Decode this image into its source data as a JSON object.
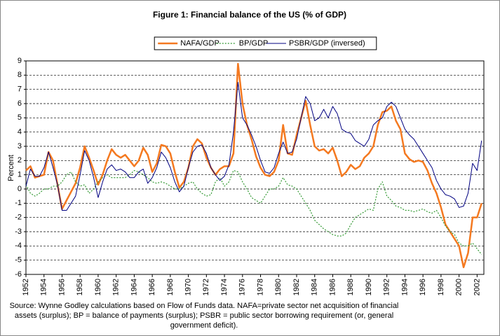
{
  "chart_data": {
    "type": "line",
    "title": "Figure 1: Financial balance of the US (% of GDP)",
    "ylabel": "Percent",
    "source": [
      "Source: Wynne Godley calculations based on Flow of Funds data. NAFA=private sector net acquisition of financial",
      "assets (surplus); BP = balance of payments (surplus); PSBR = public sector borrowing requirement (or, general",
      "government deficit)."
    ],
    "x": [
      1952,
      1952.5,
      1953,
      1953.5,
      1954,
      1954.5,
      1955,
      1955.5,
      1956,
      1956.5,
      1957,
      1957.5,
      1958,
      1958.5,
      1959,
      1959.5,
      1960,
      1960.5,
      1961,
      1961.5,
      1962,
      1962.5,
      1963,
      1963.5,
      1964,
      1964.5,
      1965,
      1965.5,
      1966,
      1966.5,
      1967,
      1967.5,
      1968,
      1968.5,
      1969,
      1969.5,
      1970,
      1970.5,
      1971,
      1971.5,
      1972,
      1972.5,
      1973,
      1973.5,
      1974,
      1974.5,
      1975,
      1975.5,
      1976,
      1976.5,
      1977,
      1977.5,
      1978,
      1978.5,
      1979,
      1979.5,
      1980,
      1980.5,
      1981,
      1981.5,
      1982,
      1982.5,
      1983,
      1983.5,
      1984,
      1984.5,
      1985,
      1985.5,
      1986,
      1986.5,
      1987,
      1987.5,
      1988,
      1988.5,
      1989,
      1989.5,
      1990,
      1990.5,
      1991,
      1991.5,
      1992,
      1992.5,
      1993,
      1993.5,
      1994,
      1994.5,
      1995,
      1995.5,
      1996,
      1996.5,
      1997,
      1997.5,
      1998,
      1998.5,
      1999,
      1999.5,
      2000,
      2000.5,
      2001,
      2001.5,
      2002,
      2002.5
    ],
    "series": [
      {
        "name": "NAFA/GDP",
        "color": "#f47920",
        "line_style": "solid",
        "width": 2.5,
        "values": [
          1.3,
          1.6,
          0.8,
          0.9,
          1.0,
          2.6,
          2.0,
          0.3,
          -1.4,
          -0.8,
          -0.2,
          0.4,
          1.5,
          3.0,
          2.2,
          1.3,
          0.3,
          1.0,
          2.0,
          2.8,
          2.4,
          2.2,
          2.4,
          2.0,
          1.6,
          2.0,
          2.9,
          2.4,
          1.2,
          1.8,
          3.1,
          3.0,
          2.5,
          1.2,
          0.1,
          0.5,
          1.5,
          3.0,
          3.5,
          3.2,
          2.2,
          1.5,
          1.0,
          1.4,
          1.6,
          1.6,
          2.5,
          8.8,
          6.0,
          4.5,
          3.5,
          2.3,
          1.5,
          1.0,
          0.9,
          1.2,
          2.0,
          4.5,
          2.5,
          2.4,
          3.8,
          5.0,
          6.2,
          4.5,
          3.0,
          2.7,
          2.8,
          2.5,
          2.9,
          2.0,
          0.9,
          1.2,
          1.7,
          1.4,
          1.6,
          2.2,
          2.5,
          3.0,
          4.5,
          5.4,
          5.5,
          5.8,
          4.8,
          4.2,
          2.5,
          2.1,
          1.9,
          2.0,
          1.9,
          1.3,
          0.4,
          -0.3,
          -1.3,
          -2.5,
          -3.0,
          -3.5,
          -4.0,
          -5.5,
          -4.5,
          -2.0,
          -2.0,
          -1.0
        ]
      },
      {
        "name": "BP/GDP",
        "color": "#339933",
        "line_style": "dotted",
        "width": 1.2,
        "values": [
          0.3,
          -0.3,
          -0.5,
          -0.3,
          0.0,
          0.0,
          0.2,
          0.2,
          0.5,
          1.0,
          1.2,
          0.5,
          0.2,
          0.3,
          -0.3,
          0.0,
          0.5,
          0.8,
          1.0,
          0.8,
          0.8,
          0.8,
          0.8,
          1.0,
          1.3,
          1.2,
          1.0,
          0.8,
          0.5,
          0.4,
          0.5,
          0.4,
          0.2,
          0.0,
          0.0,
          0.2,
          0.4,
          0.5,
          0.0,
          -0.3,
          -0.5,
          -0.4,
          0.5,
          0.8,
          0.2,
          0.5,
          1.3,
          1.2,
          0.5,
          0.0,
          -0.6,
          -0.8,
          -1.0,
          -0.5,
          0.0,
          0.0,
          0.2,
          0.8,
          0.3,
          0.2,
          0.0,
          -0.5,
          -1.0,
          -1.5,
          -2.2,
          -2.5,
          -2.8,
          -3.0,
          -3.2,
          -3.3,
          -3.3,
          -3.1,
          -2.5,
          -2.0,
          -1.8,
          -1.6,
          -1.4,
          -1.5,
          0.0,
          0.5,
          -0.5,
          -0.8,
          -1.2,
          -1.3,
          -1.5,
          -1.5,
          -1.6,
          -1.5,
          -1.4,
          -1.6,
          -1.7,
          -1.5,
          -2.0,
          -2.6,
          -3.0,
          -3.2,
          -3.8,
          -4.0,
          -4.0,
          -3.8,
          -4.2,
          -4.6
        ]
      },
      {
        "name": "PSBR/GDP (inversed)",
        "color": "#000080",
        "line_style": "solid",
        "width": 1,
        "values": [
          0.2,
          1.4,
          0.9,
          0.9,
          1.5,
          2.6,
          1.5,
          0.3,
          -1.5,
          -1.5,
          -1.0,
          -0.5,
          1.0,
          2.7,
          2.0,
          0.8,
          -0.6,
          0.5,
          1.4,
          1.7,
          1.3,
          1.4,
          1.2,
          0.8,
          0.8,
          1.2,
          1.4,
          0.4,
          0.8,
          1.5,
          2.6,
          2.2,
          1.5,
          0.5,
          -0.2,
          0.2,
          1.5,
          2.6,
          3.0,
          3.1,
          2.5,
          1.5,
          1.0,
          0.6,
          0.9,
          1.7,
          4.0,
          7.5,
          5.0,
          4.5,
          3.8,
          3.0,
          2.0,
          1.2,
          1.1,
          1.5,
          2.5,
          3.3,
          2.5,
          2.6,
          3.5,
          5.0,
          6.5,
          6.0,
          4.8,
          5.0,
          5.6,
          5.0,
          5.8,
          5.3,
          4.2,
          4.0,
          3.9,
          3.4,
          3.2,
          3.0,
          3.5,
          4.5,
          4.8,
          5.0,
          5.8,
          6.1,
          5.8,
          5.0,
          4.2,
          3.8,
          3.5,
          3.0,
          2.5,
          2.0,
          1.5,
          0.6,
          0.0,
          -0.4,
          -0.5,
          -0.7,
          -1.3,
          -1.2,
          -0.3,
          1.8,
          1.3,
          3.4
        ]
      }
    ],
    "xlim": [
      1952,
      2002.75
    ],
    "xticks": [
      1952,
      1954,
      1956,
      1958,
      1960,
      1962,
      1964,
      1966,
      1968,
      1970,
      1972,
      1974,
      1976,
      1978,
      1980,
      1982,
      1984,
      1986,
      1988,
      1990,
      1992,
      1994,
      1996,
      1998,
      2000,
      2002
    ],
    "ylim": [
      -6,
      9
    ],
    "yticks": [
      -6,
      -5,
      -4,
      -3,
      -2,
      -1,
      0,
      1,
      2,
      3,
      4,
      5,
      6,
      7,
      8,
      9
    ],
    "grid": true,
    "legend": "top"
  }
}
